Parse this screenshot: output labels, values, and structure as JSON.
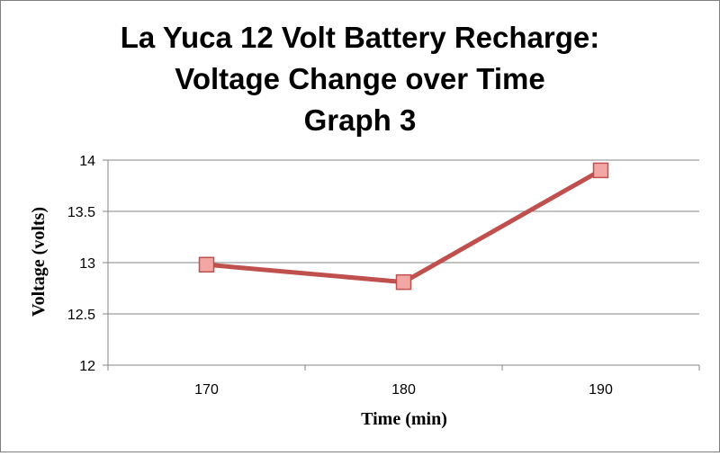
{
  "chart_data": {
    "type": "line",
    "title": [
      "La Yuca 12 Volt Battery Recharge:",
      "Voltage Change over Time",
      "Graph 3"
    ],
    "xlabel": "Time (min)",
    "ylabel": "Voltage (volts)",
    "categories": [
      "170",
      "180",
      "190"
    ],
    "series": [
      {
        "values": [
          12.98,
          12.81,
          13.9
        ],
        "color": "#c0504d",
        "marker": "square",
        "marker_color": "#f2a7a5"
      }
    ],
    "ylim": [
      12,
      14
    ],
    "yticks": [
      "12",
      "12.5",
      "13",
      "13.5",
      "14"
    ],
    "grid": "horizontal",
    "legend": "none"
  }
}
